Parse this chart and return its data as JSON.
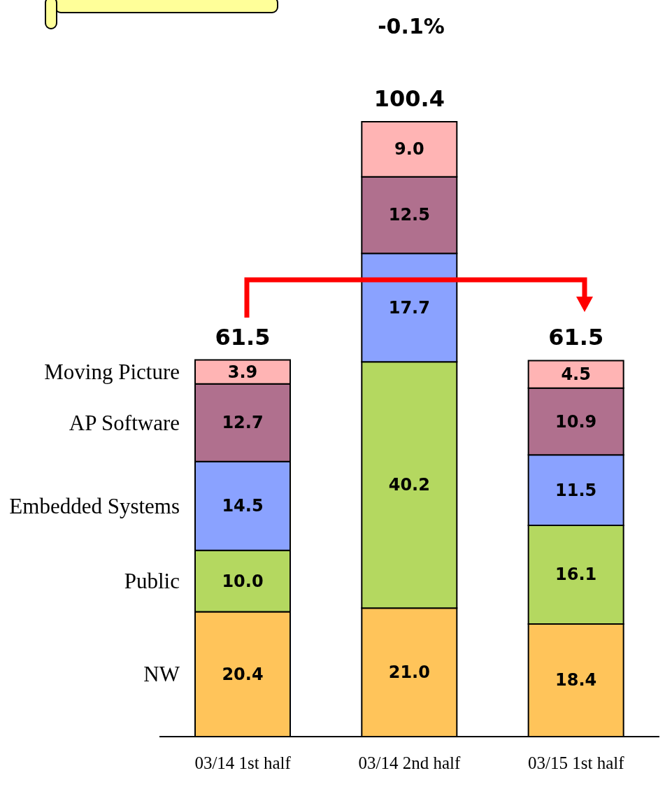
{
  "chart_data": {
    "type": "bar",
    "stacked": true,
    "categories": [
      "03/14 1st half",
      "03/14 2nd half",
      "03/15 1st half"
    ],
    "series": [
      {
        "name": "NW",
        "color": "#ffc45a",
        "values": [
          20.4,
          21.0,
          18.4
        ],
        "value_labels": [
          "20.4",
          "21.0",
          "18.4"
        ]
      },
      {
        "name": "Public",
        "color": "#b4d860",
        "values": [
          10.0,
          40.2,
          16.1
        ],
        "value_labels": [
          "10.0",
          "40.2",
          "16.1"
        ]
      },
      {
        "name": "Embedded Systems",
        "color": "#8aa2ff",
        "values": [
          14.5,
          17.7,
          11.5
        ],
        "value_labels": [
          "14.5",
          "17.7",
          "11.5"
        ]
      },
      {
        "name": "AP Software",
        "color": "#b0708e",
        "values": [
          12.7,
          12.5,
          10.9
        ],
        "value_labels": [
          "12.7",
          "12.5",
          "10.9"
        ]
      },
      {
        "name": "Moving Picture",
        "color": "#ffb4b4",
        "values": [
          3.9,
          9.0,
          4.5
        ],
        "value_labels": [
          "3.9",
          "9.0",
          "4.5"
        ]
      }
    ],
    "totals": [
      "61.5",
      "100.4",
      "61.5"
    ],
    "annotations": [
      "-0.1%"
    ]
  }
}
